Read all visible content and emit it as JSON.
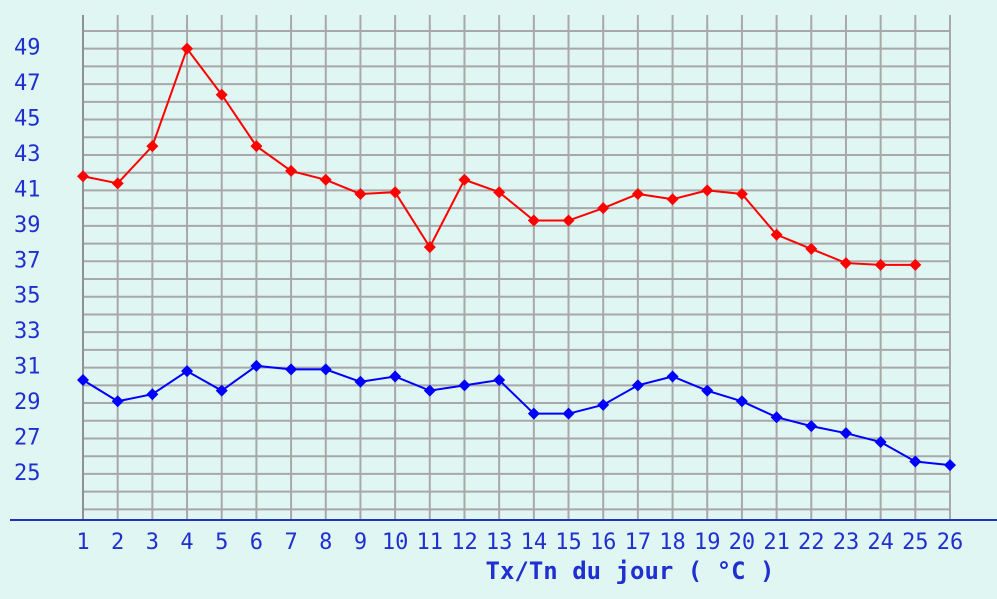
{
  "chart_data": {
    "type": "line",
    "xlabel": "Tx/Tn du jour ( °C )",
    "categories": [
      "1",
      "2",
      "3",
      "4",
      "5",
      "6",
      "7",
      "8",
      "9",
      "10",
      "11",
      "12",
      "13",
      "14",
      "15",
      "16",
      "17",
      "18",
      "19",
      "20",
      "21",
      "22",
      "23",
      "24",
      "25",
      "26"
    ],
    "series": [
      {
        "name": "Tx",
        "color": "#ff0000",
        "values": [
          41.8,
          41.4,
          43.5,
          49.0,
          46.4,
          43.5,
          42.1,
          41.6,
          40.8,
          40.9,
          37.8,
          41.6,
          40.9,
          39.3,
          39.3,
          40.0,
          40.8,
          40.5,
          41.0,
          40.8,
          38.5,
          37.7,
          36.9,
          36.8,
          36.8,
          null
        ]
      },
      {
        "name": "Tn",
        "color": "#0000ff",
        "values": [
          30.3,
          29.1,
          29.5,
          30.8,
          29.7,
          31.1,
          30.9,
          30.9,
          30.2,
          30.5,
          29.7,
          30.0,
          30.3,
          28.4,
          28.4,
          28.9,
          30.0,
          30.5,
          29.7,
          29.1,
          28.2,
          27.7,
          27.3,
          26.8,
          25.7,
          25.5
        ]
      }
    ],
    "ylim": [
      22.4,
      50.9
    ],
    "yticks": [
      25,
      27,
      29,
      31,
      33,
      35,
      37,
      39,
      41,
      43,
      45,
      47,
      49
    ],
    "ygrid_lines": [
      23,
      24,
      25,
      26,
      27,
      28,
      29,
      30,
      31,
      32,
      33,
      34,
      35,
      36,
      37,
      38,
      39,
      40,
      41,
      42,
      43,
      44,
      45,
      46,
      47,
      48,
      49,
      50
    ],
    "grid": true
  }
}
